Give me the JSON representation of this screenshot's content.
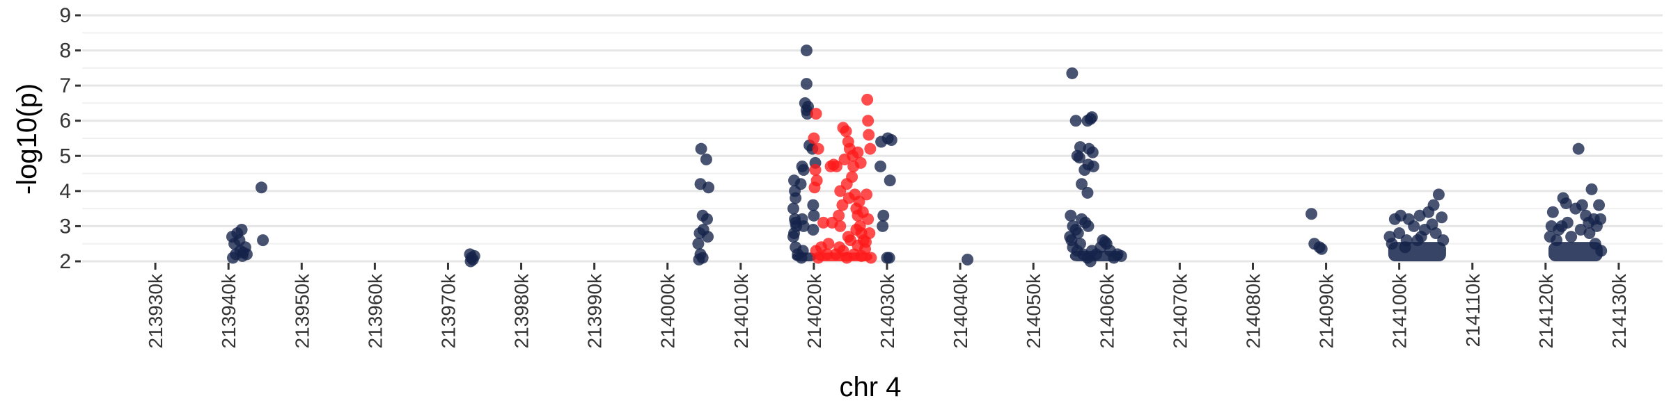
{
  "chart_data": {
    "type": "scatter",
    "xlabel": "chr 4",
    "ylabel": "-log10(p)",
    "xlim": [
      213920,
      214136
    ],
    "ylim": [
      2,
      9
    ],
    "x_ticks": [
      213930,
      213940,
      213950,
      213960,
      213970,
      213980,
      213990,
      214000,
      214010,
      214020,
      214030,
      214040,
      214050,
      214060,
      214070,
      214080,
      214090,
      214100,
      214110,
      214120,
      214130
    ],
    "x_tick_labels": [
      "213930k",
      "213940k",
      "213950k",
      "213960k",
      "213970k",
      "213980k",
      "213990k",
      "214000k",
      "214010k",
      "214020k",
      "214030k",
      "214040k",
      "214050k",
      "214060k",
      "214070k",
      "214080k",
      "214090k",
      "214100k",
      "214110k",
      "214120k",
      "214130k"
    ],
    "y_ticks": [
      2,
      3,
      4,
      5,
      6,
      7,
      8,
      9
    ],
    "y_tick_labels": [
      "2",
      "3",
      "4",
      "5",
      "6",
      "7",
      "8",
      "9"
    ],
    "grid": true,
    "colors": {
      "navy": "#14234a",
      "red": "#ff1a1a"
    },
    "series": [
      {
        "color": "#14234a",
        "points": [
          [
            213940.5,
            2.7
          ],
          [
            213940.8,
            2.5
          ],
          [
            213941.2,
            2.8
          ],
          [
            213941.8,
            2.9
          ],
          [
            213941.5,
            2.6
          ],
          [
            213941.0,
            2.2
          ],
          [
            213941.6,
            2.3
          ],
          [
            213942.3,
            2.4
          ],
          [
            213942.5,
            2.2
          ],
          [
            213940.6,
            2.1
          ],
          [
            213941.9,
            2.15
          ],
          [
            213942.0,
            2.25
          ],
          [
            213944.5,
            4.1
          ],
          [
            213944.7,
            2.6
          ],
          [
            213973.0,
            2.2
          ],
          [
            213973.2,
            2.1
          ],
          [
            213973.4,
            2.05
          ],
          [
            213973.6,
            2.15
          ],
          [
            213973.1,
            2.0
          ],
          [
            214004.6,
            5.2
          ],
          [
            214004.5,
            4.2
          ],
          [
            214005.3,
            4.9
          ],
          [
            214005.6,
            4.1
          ],
          [
            214004.8,
            3.3
          ],
          [
            214005.4,
            3.2
          ],
          [
            214004.4,
            2.8
          ],
          [
            214004.9,
            2.9
          ],
          [
            214005.5,
            2.7
          ],
          [
            214004.2,
            2.5
          ],
          [
            214004.5,
            2.2
          ],
          [
            214004.8,
            2.1
          ],
          [
            214004.3,
            2.05
          ],
          [
            214019.0,
            8.0
          ],
          [
            214019.0,
            7.05
          ],
          [
            214018.8,
            6.5
          ],
          [
            214019.2,
            6.4
          ],
          [
            214019.1,
            6.2
          ],
          [
            214019.0,
            6.3
          ],
          [
            214018.4,
            4.7
          ],
          [
            214018.6,
            4.6
          ],
          [
            214018.2,
            4.2
          ],
          [
            214017.3,
            4.3
          ],
          [
            214017.4,
            4.0
          ],
          [
            214017.5,
            3.8
          ],
          [
            214017.2,
            3.5
          ],
          [
            214017.4,
            3.2
          ],
          [
            214017.6,
            3.0
          ],
          [
            214017.3,
            2.8
          ],
          [
            214017.5,
            3.1
          ],
          [
            214017.2,
            2.7
          ],
          [
            214018.4,
            3.2
          ],
          [
            214018.6,
            3.0
          ],
          [
            214017.5,
            2.4
          ],
          [
            214017.8,
            2.2
          ],
          [
            214018.3,
            2.1
          ],
          [
            214018.5,
            2.3
          ],
          [
            214019.4,
            5.3
          ],
          [
            214019.8,
            5.2
          ],
          [
            214019.9,
            3.6
          ],
          [
            214020.0,
            3.3
          ],
          [
            214019.9,
            2.9
          ],
          [
            214020.2,
            4.8
          ],
          [
            214029.2,
            5.4
          ],
          [
            214030.1,
            5.5
          ],
          [
            214030.6,
            5.45
          ],
          [
            214029.1,
            4.7
          ],
          [
            214030.4,
            4.3
          ],
          [
            214029.5,
            3.3
          ],
          [
            214029.4,
            3.0
          ],
          [
            214030.0,
            2.1
          ],
          [
            214030.3,
            2.1
          ],
          [
            214041.0,
            2.05
          ],
          [
            214055.3,
            7.35
          ],
          [
            214055.8,
            6.0
          ],
          [
            214057.4,
            6.0
          ],
          [
            214058.0,
            6.1
          ],
          [
            214057.8,
            6.05
          ],
          [
            214056.4,
            5.25
          ],
          [
            214057.6,
            5.2
          ],
          [
            214058.1,
            5.1
          ],
          [
            214056.0,
            5.0
          ],
          [
            214056.3,
            4.95
          ],
          [
            214057.0,
            4.6
          ],
          [
            214057.5,
            4.75
          ],
          [
            214058.2,
            4.7
          ],
          [
            214056.6,
            4.2
          ],
          [
            214057.4,
            3.95
          ],
          [
            214055.1,
            3.3
          ],
          [
            214055.4,
            3.0
          ],
          [
            214055.8,
            2.9
          ],
          [
            214056.1,
            2.8
          ],
          [
            214056.6,
            3.2
          ],
          [
            214057.1,
            3.1
          ],
          [
            214057.5,
            3.0
          ],
          [
            214055.0,
            2.7
          ],
          [
            214055.2,
            2.6
          ],
          [
            214055.4,
            2.4
          ],
          [
            214056.0,
            2.3
          ],
          [
            214056.4,
            2.5
          ],
          [
            214056.8,
            2.2
          ],
          [
            214057.4,
            2.1
          ],
          [
            214058.0,
            2.3
          ],
          [
            214058.6,
            2.2
          ],
          [
            214059.2,
            2.4
          ],
          [
            214059.5,
            2.6
          ],
          [
            214060.0,
            2.5
          ],
          [
            214060.5,
            2.3
          ],
          [
            214061.0,
            2.1
          ],
          [
            214061.5,
            2.2
          ],
          [
            214062.0,
            2.15
          ],
          [
            214059.8,
            2.55
          ],
          [
            214057.8,
            2.0
          ],
          [
            214088.0,
            3.35
          ],
          [
            214088.4,
            2.5
          ],
          [
            214089.1,
            2.4
          ],
          [
            214089.4,
            2.35
          ],
          [
            214098.7,
            2.7
          ],
          [
            214099.4,
            3.2
          ],
          [
            214100.2,
            3.3
          ],
          [
            214101.3,
            3.2
          ],
          [
            214102.0,
            3.0
          ],
          [
            214102.8,
            3.3
          ],
          [
            214104.0,
            3.4
          ],
          [
            214104.7,
            3.6
          ],
          [
            214105.4,
            3.9
          ],
          [
            214105.8,
            3.25
          ],
          [
            214103.5,
            2.9
          ],
          [
            214102.5,
            2.6
          ],
          [
            214101.0,
            2.6
          ],
          [
            214100.0,
            2.8
          ],
          [
            214104.5,
            3.05
          ],
          [
            214099.0,
            2.5
          ],
          [
            214100.8,
            2.4
          ],
          [
            214103.0,
            2.7
          ],
          [
            214105.0,
            2.8
          ],
          [
            214106.0,
            2.6
          ],
          [
            214121.0,
            3.4
          ],
          [
            214122.4,
            3.8
          ],
          [
            214122.8,
            3.65
          ],
          [
            214124.1,
            3.5
          ],
          [
            214124.5,
            5.2
          ],
          [
            214125.0,
            3.6
          ],
          [
            214125.5,
            3.3
          ],
          [
            214126.3,
            4.05
          ],
          [
            214126.6,
            3.2
          ],
          [
            214127.3,
            3.6
          ],
          [
            214127.5,
            3.2
          ],
          [
            214120.8,
            3.0
          ],
          [
            214121.8,
            2.9
          ],
          [
            214123.0,
            3.1
          ],
          [
            214126.0,
            2.8
          ],
          [
            214127.0,
            3.0
          ],
          [
            214120.6,
            2.7
          ],
          [
            214122.2,
            3.0
          ],
          [
            214124.8,
            2.9
          ],
          [
            214125.9,
            3.1
          ],
          [
            214121.5,
            2.6
          ],
          [
            214123.5,
            2.7
          ],
          [
            214126.8,
            2.5
          ],
          [
            214127.6,
            2.3
          ]
        ]
      },
      {
        "color": "#ff1a1a",
        "points": [
          [
            214020.3,
            6.2
          ],
          [
            214020.0,
            5.5
          ],
          [
            214020.6,
            5.2
          ],
          [
            214020.2,
            4.6
          ],
          [
            214020.4,
            4.3
          ],
          [
            214020.1,
            4.1
          ],
          [
            214020.3,
            2.3
          ],
          [
            214020.6,
            2.1
          ],
          [
            214021.0,
            2.4
          ],
          [
            214021.3,
            3.1
          ],
          [
            214021.8,
            2.2
          ],
          [
            214022.3,
            4.7
          ],
          [
            214022.7,
            4.75
          ],
          [
            214023.1,
            4.7
          ],
          [
            214023.6,
            4.0
          ],
          [
            214023.9,
            3.6
          ],
          [
            214023.4,
            3.3
          ],
          [
            214023.6,
            3.0
          ],
          [
            214022.5,
            3.1
          ],
          [
            214024.0,
            5.8
          ],
          [
            214024.4,
            5.7
          ],
          [
            214024.7,
            5.4
          ],
          [
            214024.9,
            5.2
          ],
          [
            214024.2,
            4.9
          ],
          [
            214024.5,
            4.2
          ],
          [
            214024.8,
            3.8
          ],
          [
            214025.3,
            5.0
          ],
          [
            214025.4,
            4.7
          ],
          [
            214025.2,
            4.4
          ],
          [
            214025.6,
            3.9
          ],
          [
            214025.8,
            3.5
          ],
          [
            214026.0,
            3.3
          ],
          [
            214026.2,
            3.7
          ],
          [
            214026.3,
            3.0
          ],
          [
            214026.5,
            2.8
          ],
          [
            214026.7,
            3.4
          ],
          [
            214026.8,
            2.6
          ],
          [
            214026.0,
            5.1
          ],
          [
            214026.4,
            4.8
          ],
          [
            214027.3,
            6.6
          ],
          [
            214027.4,
            6.0
          ],
          [
            214027.5,
            5.6
          ],
          [
            214027.7,
            5.2
          ],
          [
            214027.2,
            3.9
          ],
          [
            214027.4,
            3.2
          ],
          [
            214027.6,
            2.8
          ],
          [
            214023.0,
            2.2
          ],
          [
            214023.5,
            2.4
          ],
          [
            214024.0,
            2.3
          ],
          [
            214024.5,
            2.1
          ],
          [
            214025.0,
            2.6
          ],
          [
            214025.5,
            2.2
          ],
          [
            214026.0,
            2.45
          ],
          [
            214026.5,
            2.15
          ],
          [
            214027.0,
            2.35
          ],
          [
            214027.8,
            2.1
          ],
          [
            214022.0,
            2.5
          ],
          [
            214024.7,
            2.7
          ],
          [
            214025.8,
            2.9
          ],
          [
            214027.1,
            2.55
          ]
        ]
      }
    ],
    "background_bands": [
      {
        "color": "#14234a",
        "x_range": [
          214017.0,
          214020.4
        ],
        "y_range": [
          2.0,
          2.25
        ]
      },
      {
        "color": "#14234a",
        "x_range": [
          214055.0,
          214062.2
        ],
        "y_range": [
          2.0,
          2.3
        ]
      },
      {
        "color": "#14234a",
        "x_range": [
          214098.5,
          214106.4
        ],
        "y_range": [
          2.0,
          2.55
        ]
      },
      {
        "color": "#14234a",
        "x_range": [
          214120.4,
          214127.8
        ],
        "y_range": [
          2.0,
          2.55
        ]
      },
      {
        "color": "#ff1a1a",
        "x_range": [
          214020.2,
          214028.0
        ],
        "y_range": [
          2.0,
          2.25
        ]
      }
    ]
  }
}
